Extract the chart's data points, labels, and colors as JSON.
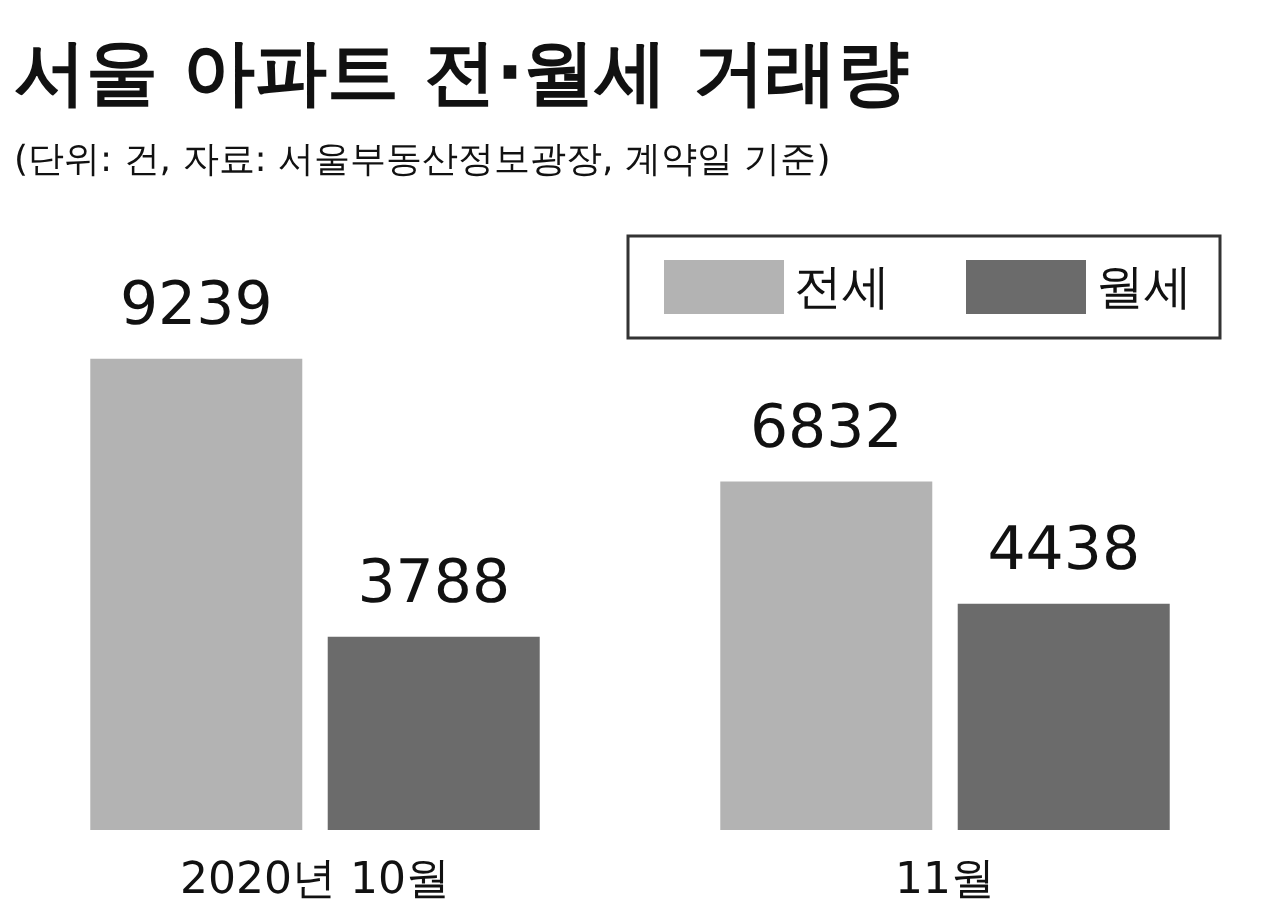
{
  "chart_data": {
    "type": "bar",
    "title": "서울 아파트 전·월세 거래량",
    "subtitle": "(단위: 건, 자료: 서울부동산정보광장, 계약일 기준)",
    "categories": [
      "2020년 10월",
      "11월"
    ],
    "series": [
      {
        "name": "전세",
        "color": "#b3b3b3",
        "values": [
          9239,
          6832
        ]
      },
      {
        "name": "월세",
        "color": "#6b6b6b",
        "values": [
          3788,
          4438
        ]
      }
    ],
    "data_labels": true,
    "legend": "top right"
  }
}
